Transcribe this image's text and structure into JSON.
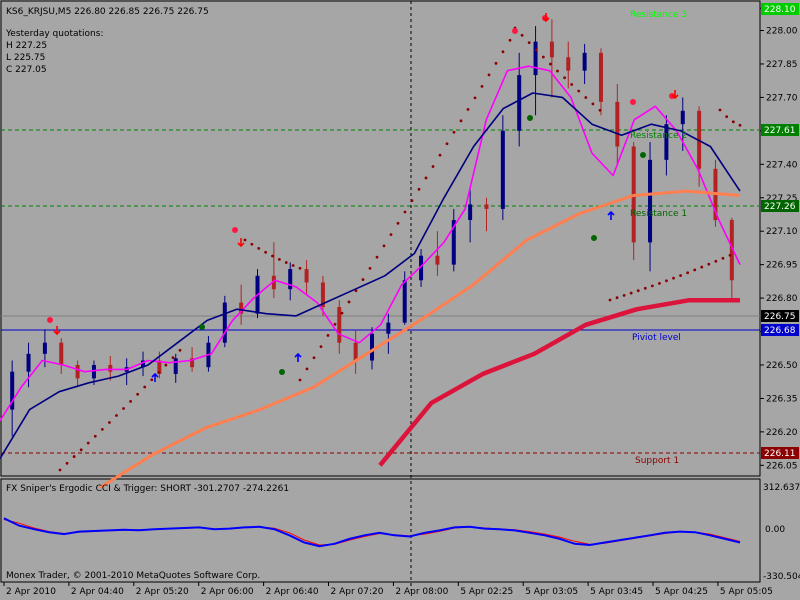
{
  "header": {
    "symbol_line": "KS6_KRJSU,M5  226.80 226.85 226.75 226.75",
    "yesterday_title": "Yesterday quotations:",
    "high": "H 227.25",
    "low": "L 225.75",
    "close": "C 227.05"
  },
  "levels": {
    "resistance3": "Resistance 3",
    "resistance2": "Resistance 2",
    "resistance1": "Resistance 1",
    "pivot": "Piviot level",
    "support1": "Support 1"
  },
  "price_tags": {
    "top": "228.10",
    "r2": "227.61",
    "r1": "227.26",
    "current": "226.75",
    "pivot": "226.68",
    "support": "226.11"
  },
  "indicator": {
    "label": "FX Sniper's Ergodic CCI & Trigger: SHORT -301.2707 -274.2261",
    "ticks": [
      "312.637",
      "0.00",
      "-330.504"
    ]
  },
  "copyright": "Monex Trader, © 2001-2010 MetaQuotes Software Corp.",
  "colors": {
    "background": "#a6a6a6",
    "bull_candle": "#000080",
    "bear_candle": "#b22222",
    "doji": "#8fbc3f",
    "magenta_ma": "#ff00ff",
    "navy_ma": "#000080",
    "coral_ma": "#ff7f50",
    "crimson_ma": "#dc143c",
    "sar": "#8b0000",
    "resistance_line": "#008000",
    "pivot_line": "#0000cd",
    "support_line": "#8b0000",
    "resistance3_text": "#00ff00"
  },
  "chart_data": {
    "type": "candlestick",
    "y_ticks": [
      "228.10",
      "228.00",
      "227.85",
      "227.70",
      "227.55",
      "227.40",
      "227.25",
      "227.10",
      "226.95",
      "226.80",
      "226.65",
      "226.50",
      "226.35",
      "226.20",
      "226.05"
    ],
    "x_ticks": [
      "2 Apr 2010",
      "2 Apr 04:40",
      "2 Apr 05:20",
      "2 Apr 06:00",
      "2 Apr 06:40",
      "2 Apr 07:20",
      "2 Apr 08:00",
      "5 Apr 02:25",
      "5 Apr 03:05",
      "5 Apr 03:45",
      "5 Apr 04:25",
      "5 Apr 05:05"
    ],
    "ylim": [
      226.02,
      228.11
    ],
    "levels": {
      "resistance2": 227.61,
      "resistance1": 227.26,
      "pivot": 226.68,
      "support1": 226.11
    },
    "current_price": 226.75,
    "candles": [
      [
        226.3,
        226.52,
        226.18,
        226.47
      ],
      [
        226.47,
        226.6,
        226.4,
        226.55
      ],
      [
        226.55,
        226.66,
        226.49,
        226.6
      ],
      [
        226.6,
        226.62,
        226.46,
        226.5
      ],
      [
        226.5,
        226.52,
        226.4,
        226.44
      ],
      [
        226.44,
        226.52,
        226.41,
        226.5
      ],
      [
        226.5,
        226.54,
        226.43,
        226.47
      ],
      [
        226.47,
        226.53,
        226.41,
        226.49
      ],
      [
        226.49,
        226.56,
        226.45,
        226.52
      ],
      [
        226.52,
        226.56,
        226.44,
        226.46
      ],
      [
        226.46,
        226.55,
        226.42,
        226.53
      ],
      [
        226.53,
        226.58,
        226.47,
        226.49
      ],
      [
        226.49,
        226.63,
        226.47,
        226.6
      ],
      [
        226.6,
        226.81,
        226.58,
        226.78
      ],
      [
        226.78,
        226.86,
        226.68,
        226.73
      ],
      [
        226.73,
        226.93,
        226.71,
        226.9
      ],
      [
        226.9,
        227.05,
        226.8,
        226.84
      ],
      [
        226.84,
        226.96,
        226.79,
        226.93
      ],
      [
        226.93,
        226.97,
        226.82,
        226.87
      ],
      [
        226.87,
        226.9,
        226.72,
        226.76
      ],
      [
        226.76,
        226.79,
        226.55,
        226.6
      ],
      [
        226.6,
        226.66,
        226.46,
        226.52
      ],
      [
        226.52,
        226.67,
        226.48,
        226.64
      ],
      [
        226.64,
        226.73,
        226.55,
        226.69
      ],
      [
        226.69,
        226.92,
        226.68,
        226.88
      ],
      [
        226.88,
        227.02,
        226.85,
        226.99
      ],
      [
        226.99,
        227.1,
        226.9,
        226.95
      ],
      [
        226.95,
        227.2,
        226.92,
        227.15
      ],
      [
        227.15,
        227.3,
        227.05,
        227.22
      ],
      [
        227.22,
        227.25,
        227.1,
        227.2
      ],
      [
        227.2,
        227.62,
        227.15,
        227.55
      ],
      [
        227.55,
        227.9,
        227.48,
        227.8
      ],
      [
        227.8,
        228.02,
        227.62,
        227.95
      ],
      [
        227.95,
        228.05,
        227.7,
        227.88
      ],
      [
        227.88,
        227.95,
        227.74,
        227.82
      ],
      [
        227.82,
        227.94,
        227.76,
        227.9
      ],
      [
        227.9,
        227.92,
        227.62,
        227.68
      ],
      [
        227.68,
        227.76,
        227.4,
        227.48
      ],
      [
        227.48,
        227.5,
        226.97,
        227.05
      ],
      [
        227.05,
        227.5,
        226.92,
        227.42
      ],
      [
        227.42,
        227.62,
        227.35,
        227.58
      ],
      [
        227.58,
        227.7,
        227.46,
        227.64
      ],
      [
        227.64,
        227.66,
        227.3,
        227.38
      ],
      [
        227.38,
        227.42,
        227.12,
        227.15
      ],
      [
        227.15,
        227.16,
        226.8,
        226.88
      ]
    ],
    "series": [
      {
        "values": [
          226.25,
          226.4,
          226.52,
          226.5,
          226.47,
          226.48,
          226.48,
          226.52,
          226.51,
          226.52,
          226.55,
          226.7,
          226.8,
          226.88,
          226.85,
          226.78,
          226.64,
          226.6,
          226.68,
          226.86,
          226.95,
          227.05,
          227.2,
          227.6,
          227.82,
          227.84,
          227.82,
          227.7,
          227.45,
          227.35,
          227.6,
          227.66,
          227.55,
          227.38,
          227.15,
          226.95
        ]
      },
      {
        "values": [
          226.08,
          226.3,
          226.38,
          226.42,
          226.45,
          226.5,
          226.6,
          226.7,
          226.75,
          226.73,
          226.72,
          226.78,
          226.84,
          226.9,
          227.0,
          227.25,
          227.48,
          227.65,
          227.72,
          227.7,
          227.58,
          227.53,
          227.58,
          227.55,
          227.48,
          227.28
        ]
      },
      {
        "values": [
          225.95,
          226.1,
          226.22,
          226.3,
          226.4,
          226.55,
          226.7,
          226.86,
          227.06,
          227.18,
          227.26,
          227.28,
          227.26
        ]
      },
      {
        "values": [
          226.05,
          226.33,
          226.46,
          226.55,
          226.68,
          226.75,
          226.79,
          226.79
        ]
      }
    ]
  }
}
